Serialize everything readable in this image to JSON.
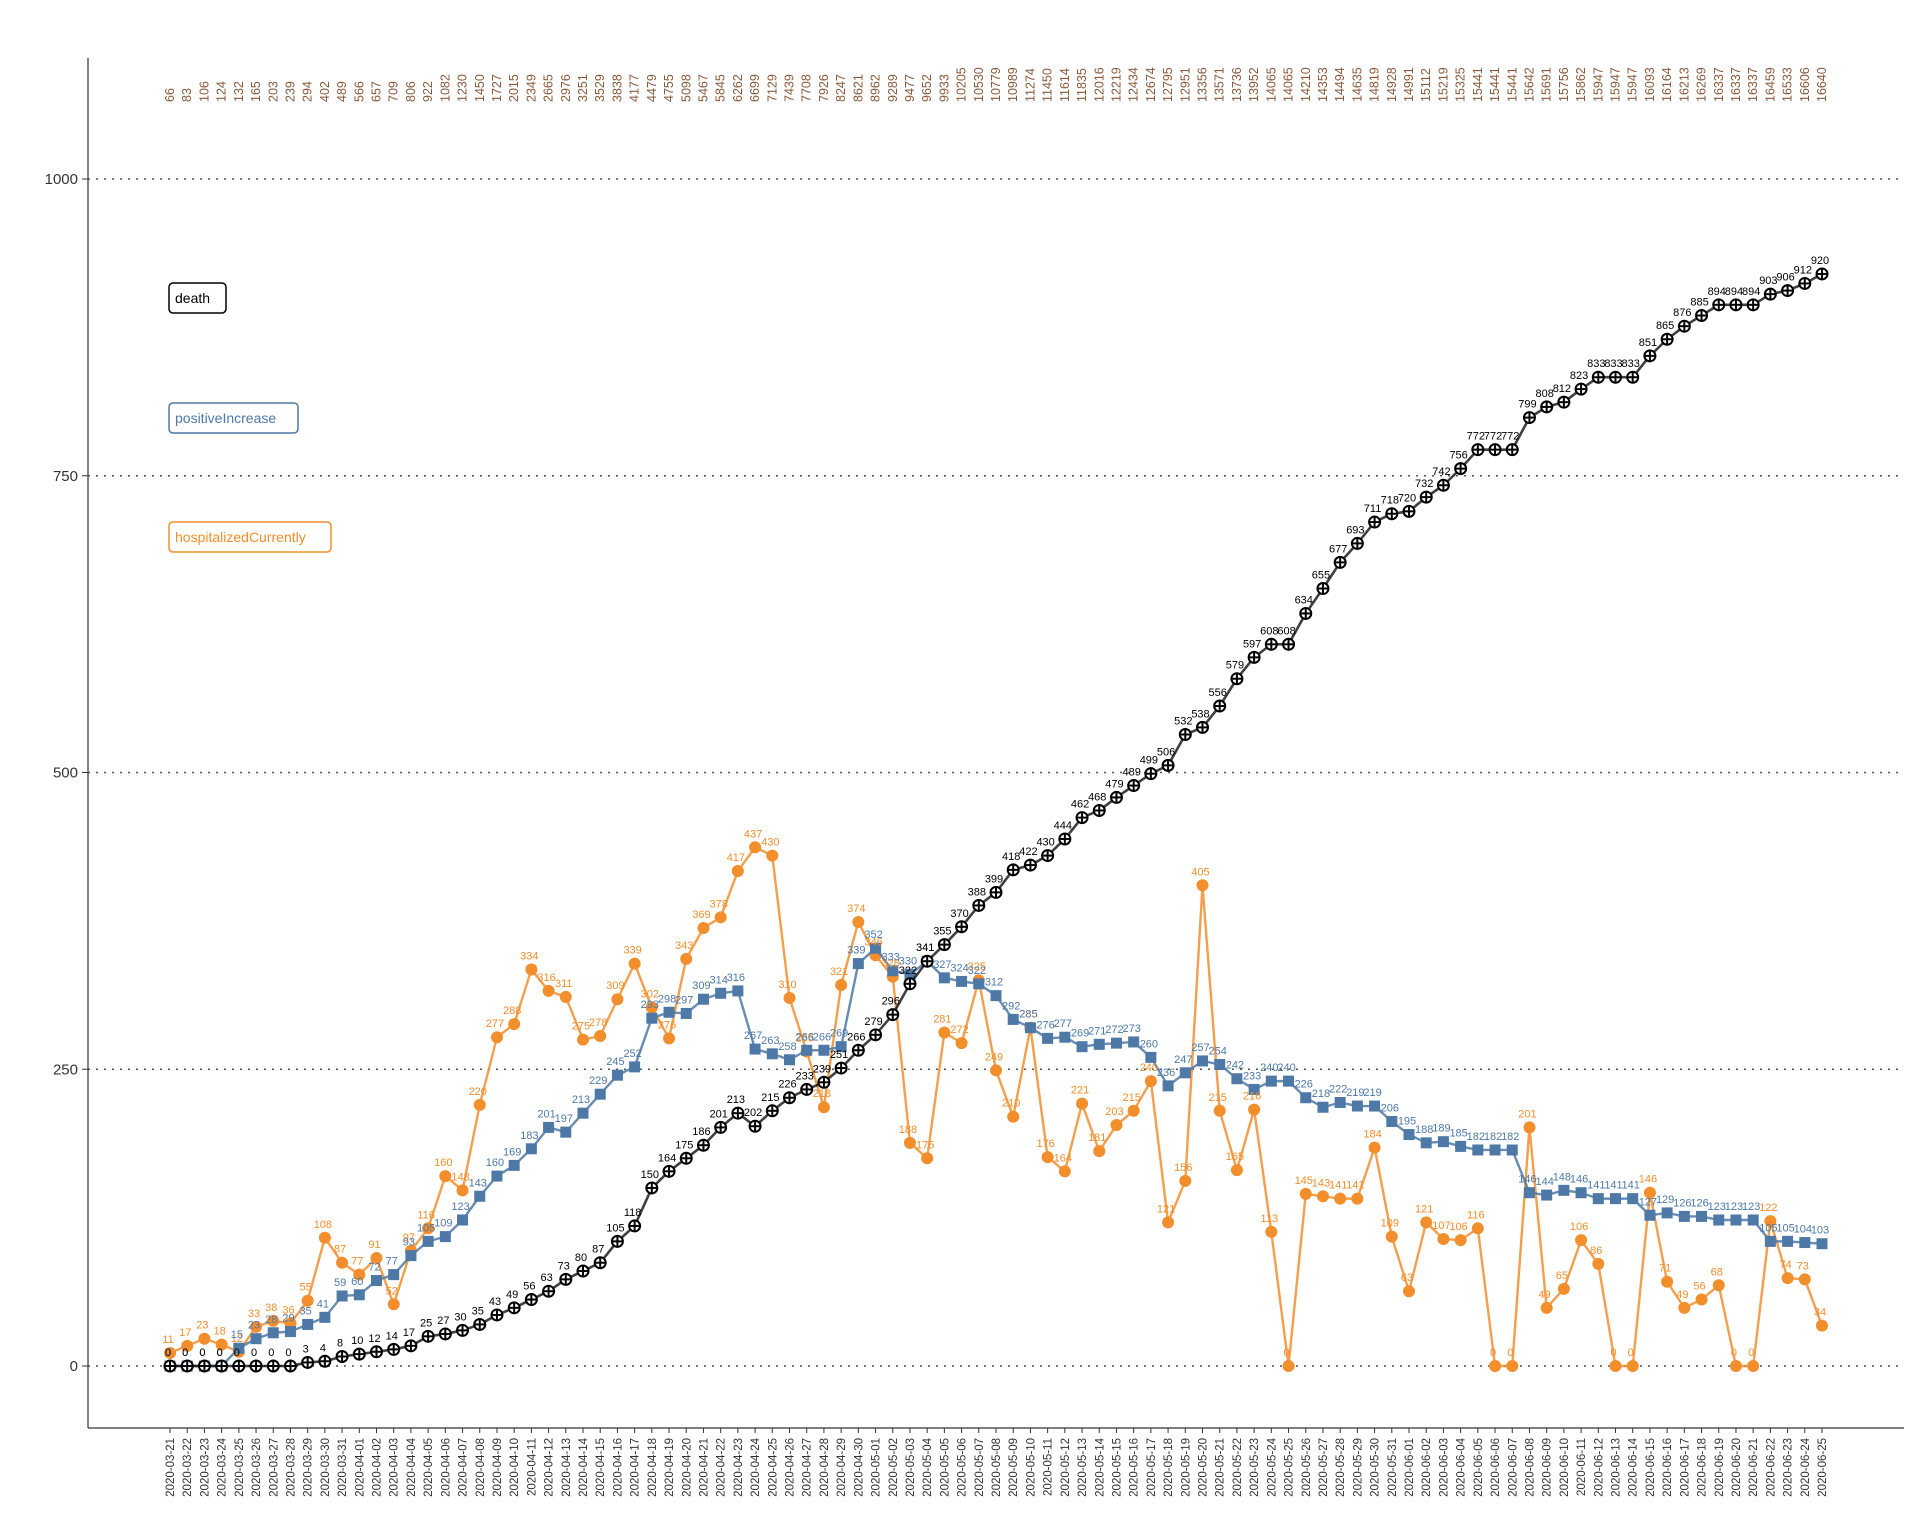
{
  "colors": {
    "death": "#000000",
    "positiveIncrease": "#4e79a7",
    "hospitalizedCurrently": "#f28e2b",
    "totals": "#8a5a3c",
    "axis": "#333333",
    "grid": "#555555"
  },
  "chart_data": {
    "type": "line",
    "x": [
      "2020-03-21",
      "2020-03-22",
      "2020-03-23",
      "2020-03-24",
      "2020-03-25",
      "2020-03-26",
      "2020-03-27",
      "2020-03-28",
      "2020-03-29",
      "2020-03-30",
      "2020-03-31",
      "2020-04-01",
      "2020-04-02",
      "2020-04-03",
      "2020-04-04",
      "2020-04-05",
      "2020-04-06",
      "2020-04-07",
      "2020-04-08",
      "2020-04-09",
      "2020-04-10",
      "2020-04-11",
      "2020-04-12",
      "2020-04-13",
      "2020-04-14",
      "2020-04-15",
      "2020-04-16",
      "2020-04-17",
      "2020-04-18",
      "2020-04-19",
      "2020-04-20",
      "2020-04-21",
      "2020-04-22",
      "2020-04-23",
      "2020-04-24",
      "2020-04-25",
      "2020-04-26",
      "2020-04-27",
      "2020-04-28",
      "2020-04-29",
      "2020-04-30",
      "2020-05-01",
      "2020-05-02",
      "2020-05-03",
      "2020-05-04",
      "2020-05-05",
      "2020-05-06",
      "2020-05-07",
      "2020-05-08",
      "2020-05-09",
      "2020-05-10",
      "2020-05-11",
      "2020-05-12",
      "2020-05-13",
      "2020-05-14",
      "2020-05-15",
      "2020-05-16",
      "2020-05-17",
      "2020-05-18",
      "2020-05-19",
      "2020-05-20",
      "2020-05-21",
      "2020-05-22",
      "2020-05-23",
      "2020-05-24",
      "2020-05-25",
      "2020-05-26",
      "2020-05-27",
      "2020-05-28",
      "2020-05-29",
      "2020-05-30",
      "2020-05-31",
      "2020-06-01",
      "2020-06-02",
      "2020-06-03",
      "2020-06-04",
      "2020-06-05",
      "2020-06-06",
      "2020-06-07",
      "2020-06-08",
      "2020-06-09",
      "2020-06-10",
      "2020-06-11",
      "2020-06-12",
      "2020-06-13",
      "2020-06-14",
      "2020-06-15",
      "2020-06-16",
      "2020-06-17",
      "2020-06-18",
      "2020-06-19",
      "2020-06-20",
      "2020-06-21",
      "2020-06-22",
      "2020-06-23",
      "2020-06-24",
      "2020-06-25"
    ],
    "top_labels": [
      "66",
      "83",
      "106",
      "124",
      "132",
      "165",
      "203",
      "239",
      "294",
      "402",
      "489",
      "566",
      "657",
      "709",
      "806",
      "922",
      "1082",
      "1230",
      "1450",
      "1727",
      "2015",
      "2349",
      "2665",
      "2976",
      "3251",
      "3529",
      "3838",
      "4177",
      "4479",
      "4755",
      "5098",
      "5467",
      "5845",
      "6262",
      "6699",
      "7129",
      "7439",
      "7708",
      "7926",
      "8247",
      "8621",
      "8962",
      "9289",
      "9477",
      "9652",
      "9933",
      "10205",
      "10530",
      "10779",
      "10989",
      "11274",
      "11450",
      "11614",
      "11835",
      "12016",
      "12219",
      "12434",
      "12674",
      "12795",
      "12951",
      "13356",
      "13571",
      "13736",
      "13952",
      "14065",
      "14065",
      "14210",
      "14353",
      "14494",
      "14635",
      "14819",
      "14928",
      "14991",
      "15112",
      "15219",
      "15325",
      "15441",
      "15441",
      "15441",
      "15642",
      "15691",
      "15756",
      "15862",
      "15947",
      "15947",
      "15947",
      "16093",
      "16164",
      "16213",
      "16269",
      "16337",
      "16337",
      "16337",
      "16459",
      "16533",
      "16606",
      "16640"
    ],
    "series": [
      {
        "name": "death",
        "marker": "circle-plus",
        "values": [
          0,
          0,
          0,
          0,
          0,
          0,
          0,
          0,
          3,
          4,
          8,
          10,
          12,
          14,
          17,
          25,
          27,
          30,
          35,
          43,
          49,
          56,
          63,
          73,
          80,
          87,
          105,
          118,
          150,
          164,
          175,
          186,
          201,
          213,
          202,
          215,
          226,
          233,
          239,
          251,
          266,
          279,
          296,
          322,
          341,
          355,
          370,
          388,
          399,
          418,
          422,
          430,
          444,
          462,
          468,
          479,
          489,
          499,
          506,
          532,
          538,
          556,
          579,
          597,
          608,
          608,
          634,
          655,
          677,
          693,
          711,
          718,
          720,
          732,
          742,
          756,
          772,
          772,
          772,
          799,
          808,
          812,
          823,
          833,
          833,
          833,
          851,
          865,
          876,
          885,
          894,
          894,
          894,
          903,
          906,
          912,
          920
        ]
      },
      {
        "name": "positiveIncrease",
        "marker": "square",
        "values": [
          0,
          0,
          0,
          0,
          15,
          23,
          28,
          29,
          35,
          41,
          59,
          60,
          72,
          77,
          93,
          105,
          109,
          123,
          143,
          160,
          169,
          183,
          201,
          197,
          213,
          229,
          245,
          252,
          293,
          298,
          297,
          309,
          314,
          316,
          267,
          263,
          258,
          266,
          266,
          269,
          339,
          352,
          333,
          330,
          341,
          327,
          324,
          322,
          312,
          292,
          285,
          276,
          277,
          269,
          271,
          272,
          273,
          260,
          236,
          247,
          257,
          254,
          242,
          233,
          240,
          240,
          226,
          218,
          222,
          219,
          219,
          206,
          195,
          188,
          189,
          185,
          182,
          182,
          182,
          146,
          144,
          148,
          146,
          141,
          141,
          141,
          127,
          129,
          126,
          126,
          123,
          123,
          123,
          105,
          105,
          104,
          103
        ]
      },
      {
        "name": "hospitalizedCurrently",
        "marker": "circle",
        "values": [
          11,
          17,
          23,
          18,
          12,
          33,
          38,
          36,
          55,
          108,
          87,
          77,
          91,
          52,
          97,
          116,
          160,
          148,
          220,
          277,
          288,
          334,
          316,
          311,
          275,
          278,
          309,
          339,
          302,
          276,
          343,
          369,
          378,
          417,
          437,
          430,
          310,
          265,
          218,
          321,
          374,
          346,
          328,
          188,
          175,
          281,
          272,
          325,
          249,
          210,
          285,
          176,
          164,
          221,
          181,
          203,
          215,
          240,
          121,
          156,
          405,
          215,
          165,
          216,
          113,
          0,
          145,
          143,
          141,
          141,
          184,
          109,
          63,
          121,
          107,
          106,
          116,
          0,
          0,
          201,
          49,
          65,
          106,
          86,
          0,
          0,
          146,
          71,
          49,
          56,
          68,
          0,
          0,
          122,
          74,
          73,
          34
        ]
      }
    ],
    "xlabel": "",
    "ylabel": "",
    "ylim": [
      -50,
      1100
    ],
    "yticks": [
      "0",
      "250",
      "500",
      "750",
      "1000"
    ],
    "grid": "horizontal dotted at y ticks",
    "legend": {
      "placement": "left",
      "entries": [
        "death",
        "positiveIncrease",
        "hospitalizedCurrently"
      ]
    }
  }
}
